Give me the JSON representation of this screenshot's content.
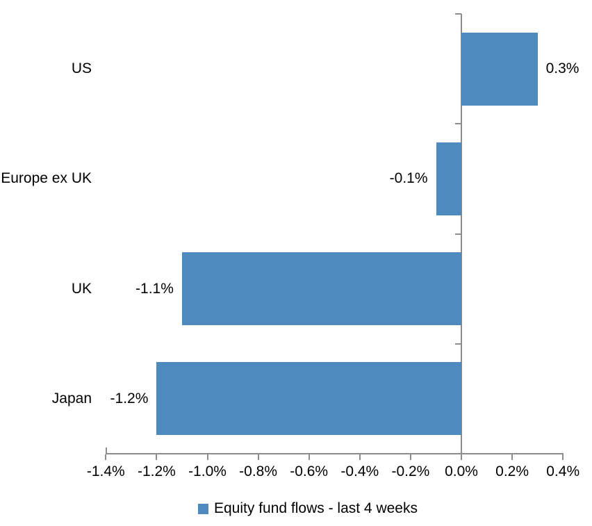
{
  "chart_data": {
    "type": "bar",
    "orientation": "horizontal",
    "title": "",
    "categories": [
      "US",
      "Europe ex UK",
      "UK",
      "Japan"
    ],
    "series": [
      {
        "name": "Equity fund flows - last 4 weeks",
        "values": [
          0.3,
          -0.1,
          -1.1,
          -1.2
        ],
        "data_labels": [
          "0.3%",
          "-0.1%",
          "-1.1%",
          "-1.2%"
        ]
      }
    ],
    "xlabel": "",
    "ylabel": "",
    "xlim": [
      -1.4,
      0.4
    ],
    "x_tick_step": 0.2,
    "x_ticks": [
      -1.4,
      -1.2,
      -1.0,
      -0.8,
      -0.6,
      -0.4,
      -0.2,
      0.0,
      0.2,
      0.4
    ],
    "x_tick_labels": [
      "-1.4%",
      "-1.2%",
      "-1.0%",
      "-0.8%",
      "-0.6%",
      "-0.4%",
      "-0.2%",
      "0.0%",
      "0.2%",
      "0.4%"
    ],
    "grid": false,
    "legend_position": "bottom"
  },
  "legend": {
    "label": "Equity fund flows - last 4 weeks"
  },
  "colors": {
    "bar": "#4E8ABE",
    "axis": "#8C8C8C",
    "text": "#000000",
    "background": "#FFFFFF"
  }
}
